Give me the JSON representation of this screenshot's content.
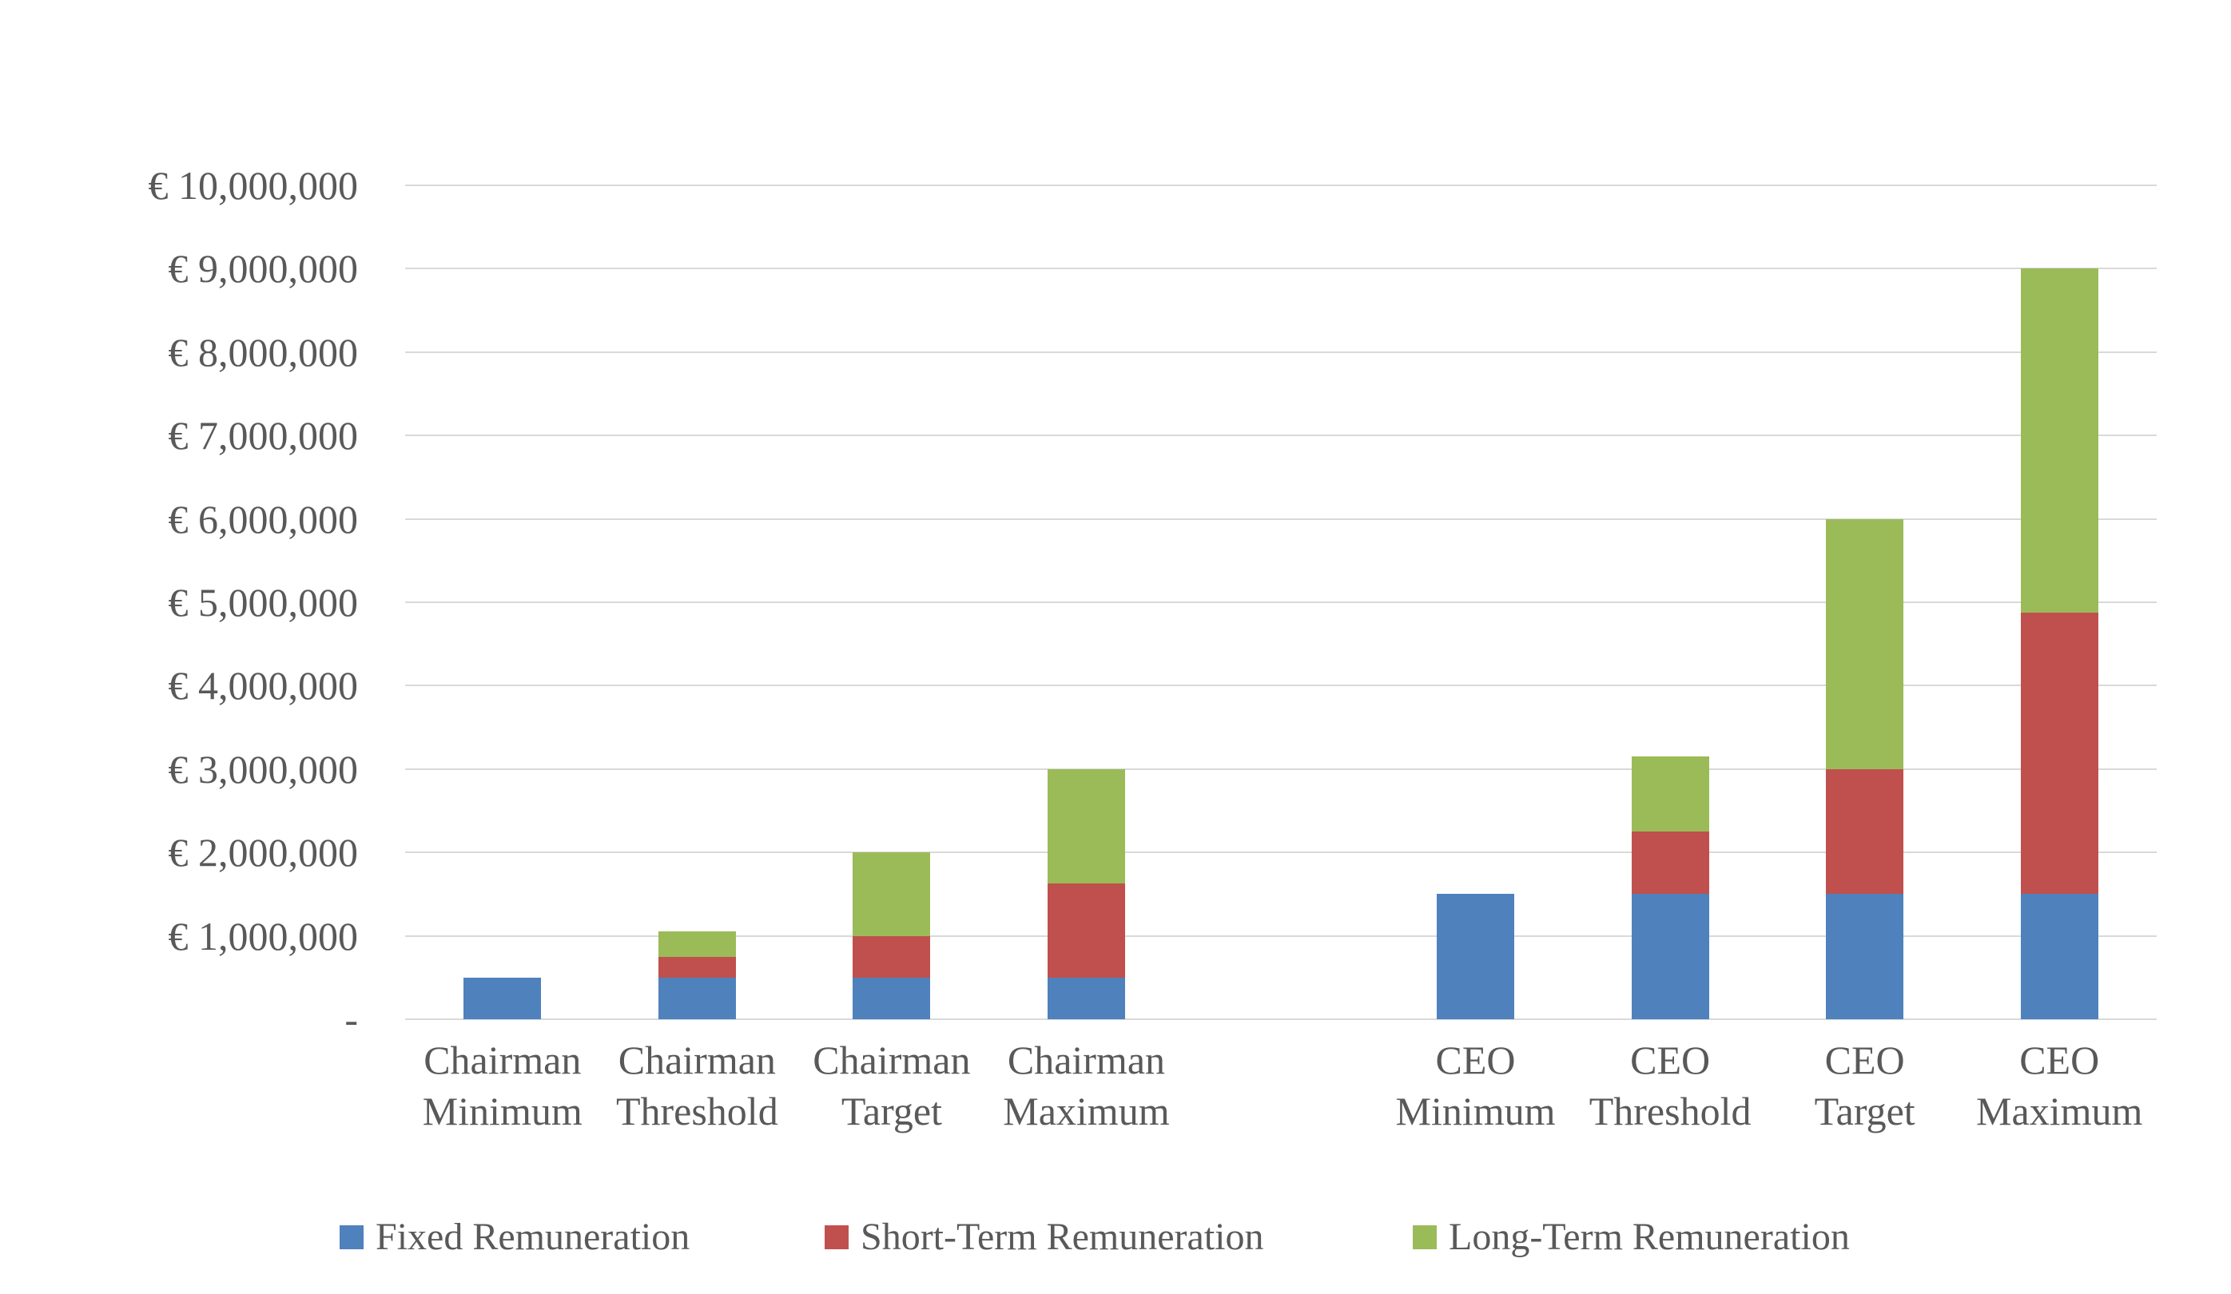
{
  "chart_data": {
    "type": "bar",
    "stacked": true,
    "title": "",
    "xlabel": "",
    "ylabel": "",
    "categories": [
      {
        "lines": [
          "Chairman",
          "Minimum"
        ]
      },
      {
        "lines": [
          "Chairman",
          "Threshold"
        ]
      },
      {
        "lines": [
          "Chairman",
          "Target"
        ]
      },
      {
        "lines": [
          "Chairman",
          "Maximum"
        ]
      },
      {
        "lines": [
          "CEO",
          "Minimum"
        ]
      },
      {
        "lines": [
          "CEO",
          "Threshold"
        ]
      },
      {
        "lines": [
          "CEO",
          "Target"
        ]
      },
      {
        "lines": [
          "CEO",
          "Maximum"
        ]
      }
    ],
    "slot_of_category": [
      0,
      1,
      2,
      3,
      5,
      6,
      7,
      8
    ],
    "total_slots": 9,
    "series": [
      {
        "name": "Fixed Remuneration",
        "color": "#4F81BD",
        "values": [
          500000,
          500000,
          500000,
          500000,
          1500000,
          1500000,
          1500000,
          1500000
        ]
      },
      {
        "name": "Short-Term Remuneration",
        "color": "#C0504D",
        "values": [
          0,
          250000,
          500000,
          1125000,
          0,
          750000,
          1500000,
          3375000
        ]
      },
      {
        "name": "Long-Term Remuneration",
        "color": "#9BBB59",
        "values": [
          0,
          300000,
          1000000,
          1375000,
          0,
          900000,
          3000000,
          4125000
        ]
      }
    ],
    "category_totals": [
      500000,
      1050000,
      2000000,
      3000000,
      1500000,
      3150000,
      6000000,
      9000000
    ],
    "y_axis": {
      "min": 0,
      "max": 10000000,
      "tick_step": 1000000,
      "tick_labels_top_to_bottom": [
        "€ 10,000,000",
        "€ 9,000,000",
        "€ 8,000,000",
        "€ 7,000,000",
        "€ 6,000,000",
        "€ 5,000,000",
        "€ 4,000,000",
        "€ 3,000,000",
        "€ 2,000,000",
        "€ 1,000,000",
        "-"
      ]
    },
    "grid": "horizontal",
    "legend": {
      "position": "bottom",
      "entries": [
        "Fixed Remuneration",
        "Short-Term Remuneration",
        "Long-Term Remuneration"
      ]
    },
    "colors": {
      "fixed": "#4F81BD",
      "short_term": "#C0504D",
      "long_term": "#9BBB59",
      "gridline": "#D9D9D9",
      "text": "#595959",
      "background": "#FFFFFF"
    }
  }
}
